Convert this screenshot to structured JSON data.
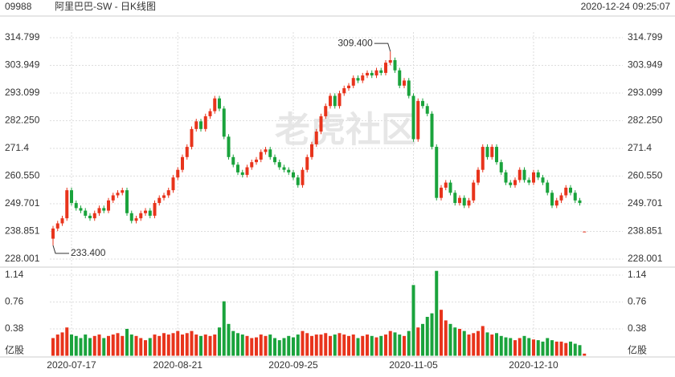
{
  "header": {
    "code": "09988",
    "title": "阿里巴巴-SW - 日K线图",
    "timestamp": "2020-12-24 09:25:07",
    "watermark": "老虎社区"
  },
  "chart_data": [
    {
      "type": "candlestick",
      "up_color": "#e8341c",
      "down_color": "#1aa33c",
      "categories": [
        null,
        null,
        null,
        null,
        "2020-07-17",
        null,
        null,
        null,
        null,
        null,
        null,
        null,
        null,
        null,
        null,
        null,
        null,
        null,
        null,
        null,
        null,
        null,
        null,
        null,
        null,
        null,
        null,
        "2020-08-21",
        null,
        null,
        null,
        null,
        null,
        null,
        null,
        null,
        null,
        null,
        null,
        null,
        null,
        null,
        null,
        null,
        null,
        null,
        null,
        null,
        null,
        null,
        null,
        null,
        "2020-09-25",
        null,
        null,
        null,
        null,
        null,
        null,
        null,
        null,
        null,
        null,
        null,
        null,
        null,
        null,
        null,
        null,
        null,
        null,
        null,
        null,
        null,
        null,
        null,
        null,
        null,
        "2020-11-05",
        null,
        null,
        null,
        null,
        null,
        null,
        null,
        null,
        null,
        null,
        null,
        null,
        null,
        null,
        null,
        null,
        null,
        null,
        null,
        null,
        null,
        null,
        null,
        null,
        null,
        "2020-12-10",
        null,
        null,
        null,
        null,
        null,
        null,
        null,
        null,
        null,
        null,
        null
      ],
      "open": [
        236,
        240,
        242,
        244,
        255,
        250,
        248,
        247,
        245,
        244,
        246,
        248,
        247,
        251,
        253,
        254,
        255,
        246,
        243,
        244,
        246,
        247,
        245,
        250,
        252,
        253,
        255,
        260,
        263,
        268,
        272,
        279,
        282,
        279,
        284,
        286,
        291,
        287,
        276,
        268,
        265,
        262,
        261,
        264,
        266,
        267,
        270,
        271,
        268,
        266,
        264,
        263,
        262,
        260,
        257,
        263,
        268,
        273,
        278,
        284,
        288,
        292,
        288,
        293,
        295,
        296,
        299,
        298,
        300,
        301,
        300,
        302,
        301,
        305,
        306,
        302,
        296,
        298,
        292,
        275,
        290,
        288,
        285,
        272,
        252,
        256,
        258,
        254,
        250,
        252,
        249,
        251,
        258,
        263,
        272,
        268,
        272,
        266,
        262,
        258,
        257,
        259,
        263,
        259,
        258,
        262,
        260,
        258,
        254,
        249,
        251,
        253,
        256,
        254,
        251,
        238.8
      ],
      "high": [
        241,
        243,
        245,
        256,
        256,
        251,
        249,
        248,
        246,
        247,
        249,
        249,
        252,
        254,
        255,
        256,
        256,
        247,
        245,
        247,
        248,
        248,
        251,
        253,
        254,
        256,
        261,
        264,
        269,
        273,
        280,
        283,
        283,
        285,
        287,
        292,
        292,
        288,
        277,
        269,
        266,
        263,
        265,
        267,
        268,
        271,
        272,
        272,
        269,
        267,
        265,
        264,
        263,
        261,
        264,
        269,
        274,
        279,
        285,
        289,
        293,
        293,
        294,
        296,
        297,
        300,
        300,
        301,
        302,
        302,
        303,
        303,
        306,
        309.4,
        307,
        303,
        299,
        299,
        293,
        291,
        291,
        289,
        286,
        273,
        257,
        259,
        259,
        255,
        253,
        253,
        252,
        259,
        264,
        273,
        273,
        273,
        273,
        267,
        263,
        259,
        260,
        264,
        264,
        260,
        263,
        263,
        261,
        259,
        255,
        252,
        254,
        257,
        257,
        255,
        252,
        238.8
      ],
      "low": [
        233.4,
        239,
        241,
        243,
        249,
        247,
        246,
        244,
        243,
        243,
        245,
        246,
        246,
        250,
        252,
        253,
        245,
        242,
        242,
        243,
        245,
        244,
        244,
        249,
        251,
        252,
        254,
        259,
        262,
        267,
        271,
        278,
        278,
        278,
        283,
        285,
        286,
        275,
        267,
        264,
        261,
        260,
        260,
        263,
        265,
        266,
        269,
        267,
        265,
        263,
        262,
        261,
        259,
        256,
        256,
        262,
        267,
        272,
        277,
        283,
        287,
        287,
        287,
        292,
        294,
        295,
        297,
        297,
        299,
        299,
        299,
        300,
        300,
        304,
        301,
        295,
        295,
        291,
        274,
        274,
        287,
        284,
        271,
        251,
        251,
        255,
        253,
        249,
        249,
        248,
        248,
        250,
        257,
        262,
        267,
        267,
        265,
        261,
        257,
        256,
        256,
        258,
        258,
        257,
        257,
        259,
        257,
        253,
        248,
        248,
        250,
        252,
        253,
        250,
        249,
        238.8
      ],
      "close": [
        240,
        242,
        244,
        255,
        250,
        248,
        247,
        245,
        244,
        246,
        248,
        247,
        251,
        253,
        254,
        255,
        246,
        243,
        244,
        246,
        247,
        245,
        250,
        252,
        253,
        255,
        260,
        263,
        268,
        272,
        279,
        282,
        279,
        284,
        286,
        291,
        287,
        276,
        268,
        265,
        262,
        261,
        264,
        266,
        267,
        270,
        271,
        268,
        266,
        264,
        263,
        262,
        260,
        257,
        263,
        268,
        273,
        278,
        284,
        288,
        292,
        288,
        293,
        295,
        296,
        299,
        298,
        300,
        301,
        300,
        302,
        301,
        305,
        306,
        302,
        296,
        298,
        292,
        275,
        290,
        288,
        285,
        272,
        252,
        256,
        258,
        254,
        250,
        252,
        249,
        251,
        258,
        263,
        272,
        268,
        272,
        266,
        262,
        258,
        257,
        259,
        263,
        259,
        258,
        262,
        260,
        258,
        254,
        249,
        251,
        253,
        256,
        254,
        251,
        250,
        238.8
      ],
      "ylim": [
        228.001,
        314.799
      ],
      "yticks": [
        228.001,
        238.851,
        249.701,
        {
          "value": 260.55,
          "label": "260.550"
        },
        271.4,
        {
          "value": 282.25,
          "label": "282.250"
        },
        293.099,
        303.949,
        314.799
      ],
      "annotations": [
        {
          "text": "309.400",
          "value": 309.4
        },
        {
          "text": "233.400",
          "value": 233.4
        }
      ]
    },
    {
      "type": "volume",
      "values": [
        0.25,
        0.3,
        0.33,
        0.4,
        0.3,
        0.28,
        0.25,
        0.3,
        0.25,
        0.28,
        0.3,
        0.25,
        0.28,
        0.3,
        0.32,
        0.28,
        0.38,
        0.3,
        0.28,
        0.25,
        0.22,
        0.25,
        0.3,
        0.28,
        0.32,
        0.3,
        0.32,
        0.35,
        0.3,
        0.32,
        0.35,
        0.3,
        0.28,
        0.3,
        0.28,
        0.3,
        0.4,
        0.77,
        0.45,
        0.35,
        0.32,
        0.3,
        0.28,
        0.25,
        0.26,
        0.3,
        0.28,
        0.3,
        0.25,
        0.22,
        0.25,
        0.28,
        0.26,
        0.3,
        0.35,
        0.32,
        0.28,
        0.3,
        0.3,
        0.32,
        0.28,
        0.3,
        0.32,
        0.3,
        0.28,
        0.3,
        0.25,
        0.28,
        0.3,
        0.28,
        0.26,
        0.28,
        0.3,
        0.35,
        0.33,
        0.3,
        0.28,
        0.35,
        1.0,
        0.4,
        0.45,
        0.55,
        0.6,
        1.2,
        0.65,
        0.5,
        0.45,
        0.4,
        0.38,
        0.35,
        0.3,
        0.32,
        0.35,
        0.42,
        0.33,
        0.3,
        0.32,
        0.28,
        0.26,
        0.25,
        0.22,
        0.25,
        0.28,
        0.25,
        0.23,
        0.22,
        0.2,
        0.25,
        0.22,
        0.2,
        0.2,
        0.18,
        0.2,
        0.17,
        0.15,
        0.03
      ],
      "ylim": [
        0,
        1.14
      ],
      "yticks": [
        {
          "value": 0,
          "label": "亿股"
        },
        0.38,
        0.76,
        1.14
      ]
    }
  ]
}
